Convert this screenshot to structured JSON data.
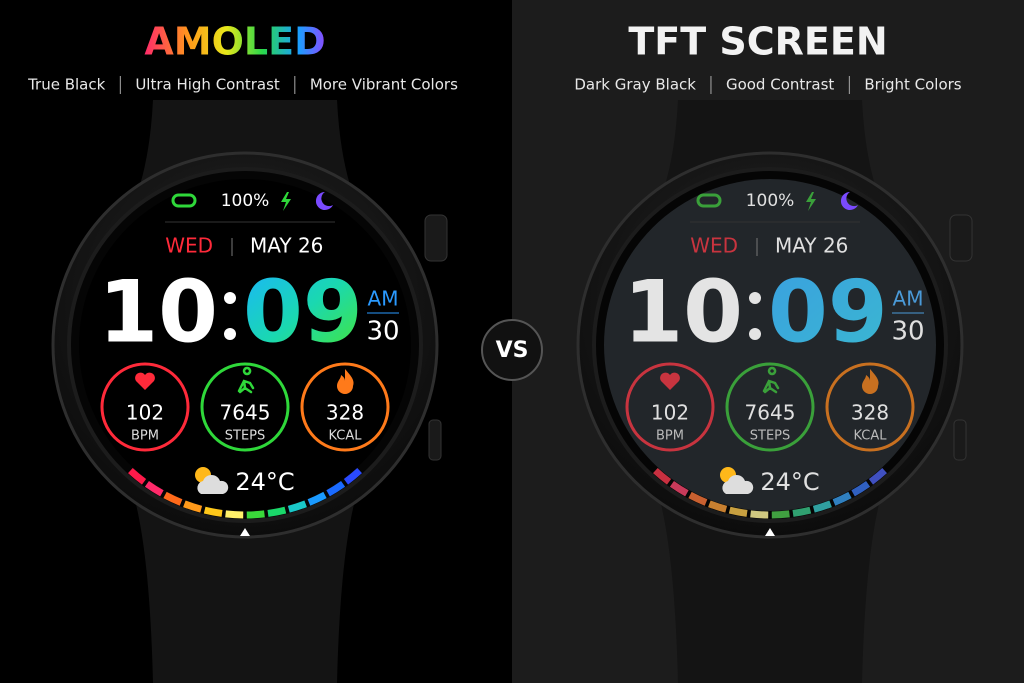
{
  "vs": "VS",
  "panels": [
    {
      "title": "AMOLED",
      "features": [
        "True Black",
        "Ultra High Contrast",
        "More Vibrant Colors"
      ],
      "watch": {
        "battery": "100%",
        "day": "WED",
        "date": "MAY 26",
        "hour": "10",
        "minute": "09",
        "period": "AM",
        "seconds": "30",
        "metrics": [
          {
            "value": "102",
            "unit": "BPM"
          },
          {
            "value": "7645",
            "unit": "STEPS"
          },
          {
            "value": "328",
            "unit": "KCAL"
          }
        ],
        "temperature": "24°C"
      }
    },
    {
      "title": "TFT SCREEN",
      "features": [
        "Dark Gray Black",
        "Good Contrast",
        "Bright Colors"
      ],
      "watch": {
        "battery": "100%",
        "day": "WED",
        "date": "MAY 26",
        "hour": "10",
        "minute": "09",
        "period": "AM",
        "seconds": "30",
        "metrics": [
          {
            "value": "102",
            "unit": "BPM"
          },
          {
            "value": "7645",
            "unit": "STEPS"
          },
          {
            "value": "328",
            "unit": "KCAL"
          }
        ],
        "temperature": "24°C"
      }
    }
  ]
}
